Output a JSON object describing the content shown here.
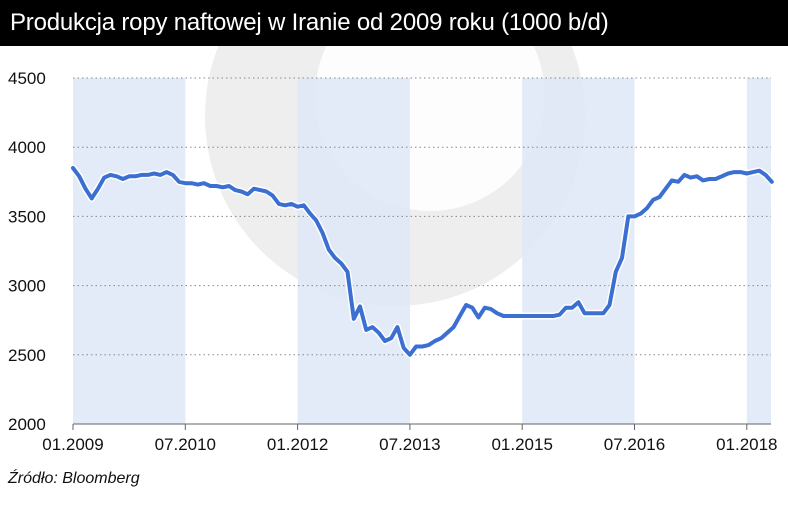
{
  "title": "Produkcja ropy naftowej w Iranie od 2009 roku (1000 b/d)",
  "source": "Źródło: Bloomberg",
  "colors": {
    "line": "#3b6fd1",
    "line_outline": "#ffffff",
    "band": "#dde8f6",
    "grid": "#888888",
    "title_bg": "#000000",
    "title_fg": "#ffffff"
  },
  "chart_data": {
    "type": "line",
    "title": "Produkcja ropy naftowej w Iranie od 2009 roku (1000 b/d)",
    "xlabel": "",
    "ylabel": "",
    "ylim": [
      2000,
      4500
    ],
    "yticks": [
      2000,
      2500,
      3000,
      3500,
      4000,
      4500
    ],
    "xlim": [
      "2009-01",
      "2018-06"
    ],
    "xticks": [
      {
        "date": "2009-01",
        "label": "01.2009"
      },
      {
        "date": "2010-07",
        "label": "07.2010"
      },
      {
        "date": "2012-01",
        "label": "01.2012"
      },
      {
        "date": "2013-07",
        "label": "07.2013"
      },
      {
        "date": "2015-01",
        "label": "01.2015"
      },
      {
        "date": "2016-07",
        "label": "07.2016"
      },
      {
        "date": "2018-01",
        "label": "01.2018"
      }
    ],
    "shaded_periods": [
      [
        "2009-01",
        "2010-07"
      ],
      [
        "2012-01",
        "2013-07"
      ],
      [
        "2015-01",
        "2016-07"
      ],
      [
        "2018-01",
        "2018-05"
      ]
    ],
    "grid": "horizontal dotted",
    "series": [
      {
        "points": [
          [
            "2009-01",
            3850
          ],
          [
            "2009-02",
            3790
          ],
          [
            "2009-03",
            3700
          ],
          [
            "2009-04",
            3630
          ],
          [
            "2009-05",
            3700
          ],
          [
            "2009-06",
            3780
          ],
          [
            "2009-07",
            3800
          ],
          [
            "2009-08",
            3790
          ],
          [
            "2009-09",
            3770
          ],
          [
            "2009-10",
            3790
          ],
          [
            "2009-11",
            3790
          ],
          [
            "2009-12",
            3800
          ],
          [
            "2010-01",
            3800
          ],
          [
            "2010-02",
            3810
          ],
          [
            "2010-03",
            3800
          ],
          [
            "2010-04",
            3820
          ],
          [
            "2010-05",
            3800
          ],
          [
            "2010-06",
            3750
          ],
          [
            "2010-07",
            3740
          ],
          [
            "2010-08",
            3740
          ],
          [
            "2010-09",
            3730
          ],
          [
            "2010-10",
            3740
          ],
          [
            "2010-11",
            3720
          ],
          [
            "2010-12",
            3720
          ],
          [
            "2011-01",
            3710
          ],
          [
            "2011-02",
            3720
          ],
          [
            "2011-03",
            3690
          ],
          [
            "2011-04",
            3680
          ],
          [
            "2011-05",
            3660
          ],
          [
            "2011-06",
            3700
          ],
          [
            "2011-07",
            3690
          ],
          [
            "2011-08",
            3680
          ],
          [
            "2011-09",
            3650
          ],
          [
            "2011-10",
            3590
          ],
          [
            "2011-11",
            3580
          ],
          [
            "2011-12",
            3590
          ],
          [
            "2012-01",
            3570
          ],
          [
            "2012-02",
            3580
          ],
          [
            "2012-03",
            3520
          ],
          [
            "2012-04",
            3470
          ],
          [
            "2012-05",
            3380
          ],
          [
            "2012-06",
            3260
          ],
          [
            "2012-07",
            3200
          ],
          [
            "2012-08",
            3160
          ],
          [
            "2012-09",
            3100
          ],
          [
            "2012-10",
            2760
          ],
          [
            "2012-11",
            2850
          ],
          [
            "2012-12",
            2680
          ],
          [
            "2013-01",
            2700
          ],
          [
            "2013-02",
            2660
          ],
          [
            "2013-03",
            2600
          ],
          [
            "2013-04",
            2620
          ],
          [
            "2013-05",
            2700
          ],
          [
            "2013-06",
            2550
          ],
          [
            "2013-07",
            2500
          ],
          [
            "2013-08",
            2560
          ],
          [
            "2013-09",
            2560
          ],
          [
            "2013-10",
            2570
          ],
          [
            "2013-11",
            2600
          ],
          [
            "2013-12",
            2620
          ],
          [
            "2014-01",
            2660
          ],
          [
            "2014-02",
            2700
          ],
          [
            "2014-03",
            2780
          ],
          [
            "2014-04",
            2860
          ],
          [
            "2014-05",
            2840
          ],
          [
            "2014-06",
            2770
          ],
          [
            "2014-07",
            2840
          ],
          [
            "2014-08",
            2830
          ],
          [
            "2014-09",
            2800
          ],
          [
            "2014-10",
            2780
          ],
          [
            "2014-11",
            2780
          ],
          [
            "2014-12",
            2780
          ],
          [
            "2015-01",
            2780
          ],
          [
            "2015-02",
            2780
          ],
          [
            "2015-03",
            2780
          ],
          [
            "2015-04",
            2780
          ],
          [
            "2015-05",
            2780
          ],
          [
            "2015-06",
            2780
          ],
          [
            "2015-07",
            2790
          ],
          [
            "2015-08",
            2840
          ],
          [
            "2015-09",
            2840
          ],
          [
            "2015-10",
            2880
          ],
          [
            "2015-11",
            2800
          ],
          [
            "2015-12",
            2800
          ],
          [
            "2016-01",
            2800
          ],
          [
            "2016-02",
            2800
          ],
          [
            "2016-03",
            2860
          ],
          [
            "2016-04",
            3100
          ],
          [
            "2016-05",
            3200
          ],
          [
            "2016-06",
            3500
          ],
          [
            "2016-07",
            3500
          ],
          [
            "2016-08",
            3520
          ],
          [
            "2016-09",
            3560
          ],
          [
            "2016-10",
            3620
          ],
          [
            "2016-11",
            3640
          ],
          [
            "2016-12",
            3700
          ],
          [
            "2017-01",
            3760
          ],
          [
            "2017-02",
            3750
          ],
          [
            "2017-03",
            3800
          ],
          [
            "2017-04",
            3780
          ],
          [
            "2017-05",
            3790
          ],
          [
            "2017-06",
            3760
          ],
          [
            "2017-07",
            3770
          ],
          [
            "2017-08",
            3770
          ],
          [
            "2017-09",
            3790
          ],
          [
            "2017-10",
            3810
          ],
          [
            "2017-11",
            3820
          ],
          [
            "2017-12",
            3820
          ],
          [
            "2018-01",
            3810
          ],
          [
            "2018-02",
            3820
          ],
          [
            "2018-03",
            3830
          ],
          [
            "2018-04",
            3800
          ],
          [
            "2018-05",
            3750
          ]
        ]
      }
    ]
  }
}
